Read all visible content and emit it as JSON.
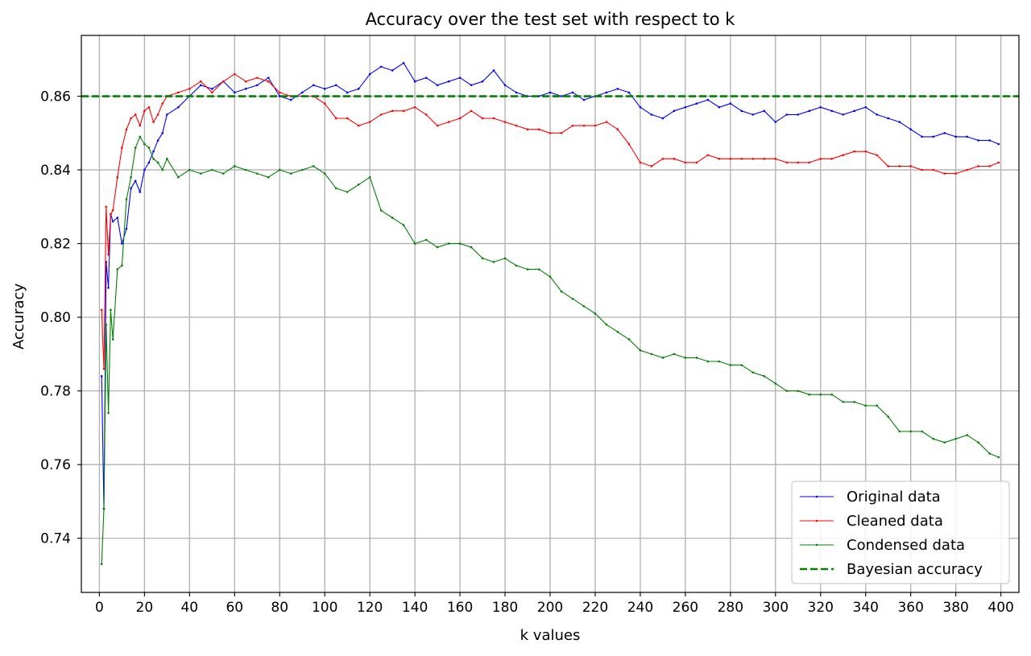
{
  "chart_data": {
    "type": "line",
    "title": "Accuracy over the test set with respect to k",
    "xlabel": "k values",
    "ylabel": "Accuracy",
    "xlim": [
      -8,
      408
    ],
    "ylim": [
      0.7253,
      0.8765
    ],
    "xticks": [
      0,
      20,
      40,
      60,
      80,
      100,
      120,
      140,
      160,
      180,
      200,
      220,
      240,
      260,
      280,
      300,
      320,
      340,
      360,
      380,
      400
    ],
    "yticks": [
      0.74,
      0.76,
      0.78,
      0.8,
      0.82,
      0.84,
      0.86
    ],
    "ytick_labels": [
      "0.74",
      "0.76",
      "0.78",
      "0.80",
      "0.82",
      "0.84",
      "0.86"
    ],
    "grid": true,
    "legend_position": "lower right",
    "series": [
      {
        "name": "Original data",
        "color": "#0000ff",
        "x": [
          1,
          2,
          3,
          4,
          5,
          6,
          8,
          10,
          12,
          14,
          16,
          18,
          20,
          22,
          24,
          26,
          28,
          30,
          35,
          40,
          45,
          50,
          55,
          60,
          65,
          70,
          75,
          80,
          85,
          90,
          95,
          100,
          105,
          110,
          115,
          120,
          125,
          130,
          135,
          140,
          145,
          150,
          155,
          160,
          165,
          170,
          175,
          180,
          185,
          190,
          195,
          200,
          205,
          210,
          215,
          220,
          225,
          230,
          235,
          240,
          245,
          250,
          255,
          260,
          265,
          270,
          275,
          280,
          285,
          290,
          295,
          300,
          305,
          310,
          315,
          320,
          325,
          330,
          335,
          340,
          345,
          350,
          355,
          360,
          365,
          370,
          375,
          380,
          385,
          390,
          395,
          399
        ],
        "values": [
          0.784,
          0.748,
          0.815,
          0.808,
          0.828,
          0.826,
          0.827,
          0.82,
          0.824,
          0.835,
          0.837,
          0.834,
          0.84,
          0.842,
          0.845,
          0.848,
          0.85,
          0.855,
          0.857,
          0.86,
          0.863,
          0.862,
          0.864,
          0.861,
          0.862,
          0.863,
          0.865,
          0.86,
          0.859,
          0.861,
          0.863,
          0.862,
          0.863,
          0.861,
          0.862,
          0.866,
          0.868,
          0.867,
          0.869,
          0.864,
          0.865,
          0.863,
          0.864,
          0.865,
          0.863,
          0.864,
          0.867,
          0.863,
          0.861,
          0.86,
          0.86,
          0.861,
          0.86,
          0.861,
          0.859,
          0.86,
          0.861,
          0.862,
          0.861,
          0.857,
          0.855,
          0.854,
          0.856,
          0.857,
          0.858,
          0.859,
          0.857,
          0.858,
          0.856,
          0.855,
          0.856,
          0.853,
          0.855,
          0.855,
          0.856,
          0.857,
          0.856,
          0.855,
          0.856,
          0.857,
          0.855,
          0.854,
          0.853,
          0.851,
          0.849,
          0.849,
          0.85,
          0.849,
          0.849,
          0.848,
          0.848,
          0.847
        ]
      },
      {
        "name": "Cleaned data",
        "color": "#ff0000",
        "x": [
          1,
          2,
          3,
          4,
          5,
          6,
          8,
          10,
          12,
          14,
          16,
          18,
          20,
          22,
          24,
          26,
          28,
          30,
          35,
          40,
          45,
          50,
          55,
          60,
          65,
          70,
          75,
          80,
          85,
          90,
          95,
          100,
          105,
          110,
          115,
          120,
          125,
          130,
          135,
          140,
          145,
          150,
          155,
          160,
          165,
          170,
          175,
          180,
          185,
          190,
          195,
          200,
          205,
          210,
          215,
          220,
          225,
          230,
          235,
          240,
          245,
          250,
          255,
          260,
          265,
          270,
          275,
          280,
          285,
          290,
          295,
          300,
          305,
          310,
          315,
          320,
          325,
          330,
          335,
          340,
          345,
          350,
          355,
          360,
          365,
          370,
          375,
          380,
          385,
          390,
          395,
          399
        ],
        "values": [
          0.802,
          0.786,
          0.83,
          0.817,
          0.828,
          0.829,
          0.838,
          0.846,
          0.851,
          0.854,
          0.855,
          0.852,
          0.856,
          0.857,
          0.853,
          0.855,
          0.858,
          0.86,
          0.861,
          0.862,
          0.864,
          0.861,
          0.864,
          0.866,
          0.864,
          0.865,
          0.864,
          0.861,
          0.86,
          0.86,
          0.86,
          0.858,
          0.854,
          0.854,
          0.852,
          0.853,
          0.855,
          0.856,
          0.856,
          0.857,
          0.855,
          0.852,
          0.853,
          0.854,
          0.856,
          0.854,
          0.854,
          0.853,
          0.852,
          0.851,
          0.851,
          0.85,
          0.85,
          0.852,
          0.852,
          0.852,
          0.853,
          0.851,
          0.847,
          0.842,
          0.841,
          0.843,
          0.843,
          0.842,
          0.842,
          0.844,
          0.843,
          0.843,
          0.843,
          0.843,
          0.843,
          0.843,
          0.842,
          0.842,
          0.842,
          0.843,
          0.843,
          0.844,
          0.845,
          0.845,
          0.844,
          0.841,
          0.841,
          0.841,
          0.84,
          0.84,
          0.839,
          0.839,
          0.84,
          0.841,
          0.841,
          0.842
        ]
      },
      {
        "name": "Condensed data",
        "color": "#008000",
        "x": [
          1,
          2,
          3,
          4,
          5,
          6,
          8,
          10,
          12,
          14,
          16,
          18,
          20,
          22,
          24,
          26,
          28,
          30,
          35,
          40,
          45,
          50,
          55,
          60,
          65,
          70,
          75,
          80,
          85,
          90,
          95,
          100,
          105,
          110,
          115,
          120,
          125,
          130,
          135,
          140,
          145,
          150,
          155,
          160,
          165,
          170,
          175,
          180,
          185,
          190,
          195,
          200,
          205,
          210,
          215,
          220,
          225,
          230,
          235,
          240,
          245,
          250,
          255,
          260,
          265,
          270,
          275,
          280,
          285,
          290,
          295,
          300,
          305,
          310,
          315,
          320,
          325,
          330,
          335,
          340,
          345,
          350,
          355,
          360,
          365,
          370,
          375,
          380,
          385,
          390,
          395,
          399
        ],
        "values": [
          0.733,
          0.748,
          0.798,
          0.774,
          0.802,
          0.794,
          0.813,
          0.814,
          0.832,
          0.838,
          0.846,
          0.849,
          0.847,
          0.846,
          0.843,
          0.842,
          0.84,
          0.843,
          0.838,
          0.84,
          0.839,
          0.84,
          0.839,
          0.841,
          0.84,
          0.839,
          0.838,
          0.84,
          0.839,
          0.84,
          0.841,
          0.839,
          0.835,
          0.834,
          0.836,
          0.838,
          0.829,
          0.827,
          0.825,
          0.82,
          0.821,
          0.819,
          0.82,
          0.82,
          0.819,
          0.816,
          0.815,
          0.816,
          0.814,
          0.813,
          0.813,
          0.811,
          0.807,
          0.805,
          0.803,
          0.801,
          0.798,
          0.796,
          0.794,
          0.791,
          0.79,
          0.789,
          0.79,
          0.789,
          0.789,
          0.788,
          0.788,
          0.787,
          0.787,
          0.785,
          0.784,
          0.782,
          0.78,
          0.78,
          0.779,
          0.779,
          0.779,
          0.777,
          0.777,
          0.776,
          0.776,
          0.773,
          0.769,
          0.769,
          0.769,
          0.767,
          0.766,
          0.767,
          0.768,
          0.766,
          0.763,
          0.762
        ]
      },
      {
        "name": "Bayesian accuracy",
        "color": "#008000",
        "dashed": true,
        "constant": 0.86
      }
    ]
  }
}
